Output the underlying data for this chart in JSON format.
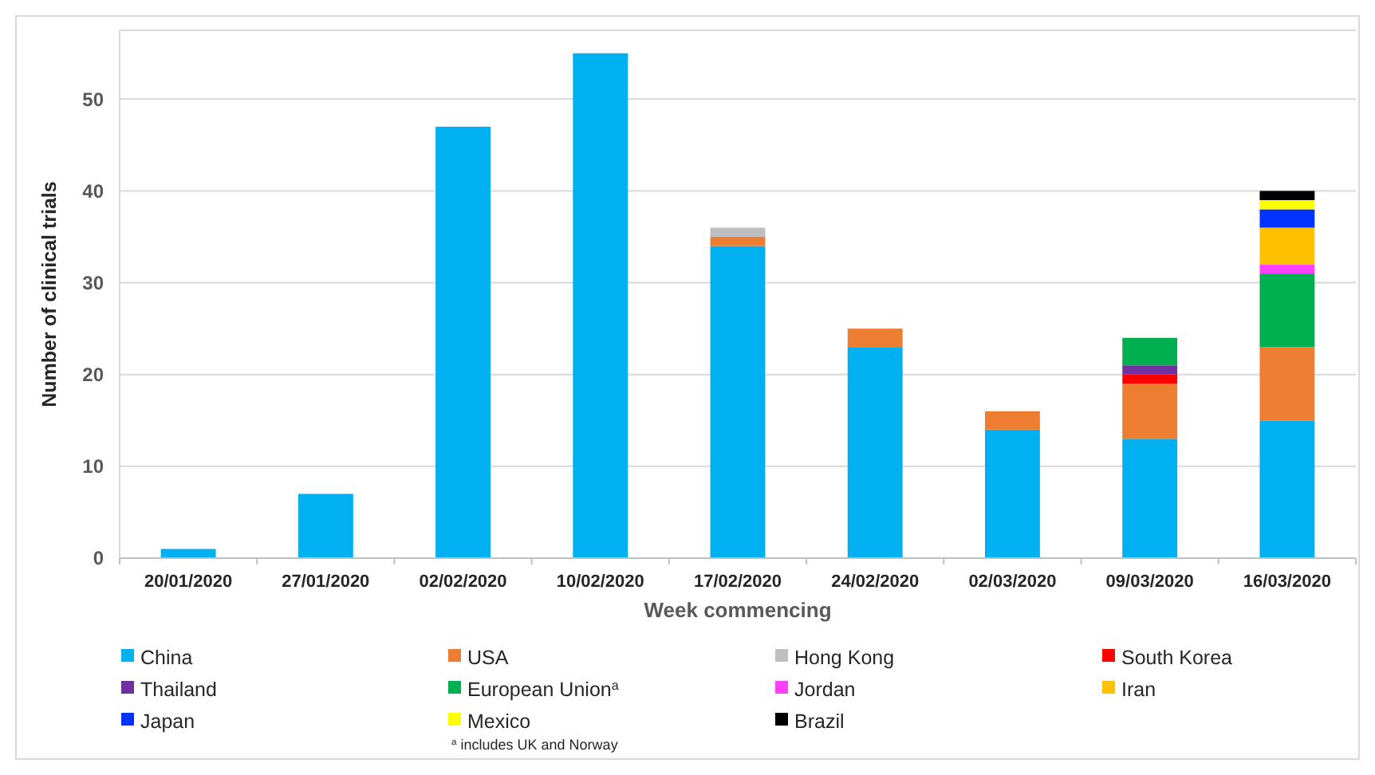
{
  "chart_data": {
    "type": "bar",
    "stacked": true,
    "xlabel": "Week commencing",
    "ylabel": "Number of clinical trials",
    "categories": [
      "20/01/2020",
      "27/01/2020",
      "02/02/2020",
      "10/02/2020",
      "17/02/2020",
      "24/02/2020",
      "02/03/2020",
      "09/03/2020",
      "16/03/2020"
    ],
    "series": [
      {
        "name": "China",
        "color": "#00b0f0",
        "values": [
          1,
          7,
          47,
          55,
          34,
          23,
          14,
          13,
          15
        ]
      },
      {
        "name": "USA",
        "color": "#ed7d31",
        "values": [
          0,
          0,
          0,
          0,
          1,
          2,
          2,
          6,
          8
        ]
      },
      {
        "name": "Hong Kong",
        "color": "#bfbfbf",
        "values": [
          0,
          0,
          0,
          0,
          1,
          0,
          0,
          0,
          0
        ]
      },
      {
        "name": "South Korea",
        "color": "#ff0000",
        "values": [
          0,
          0,
          0,
          0,
          0,
          0,
          0,
          1,
          0
        ]
      },
      {
        "name": "Thailand",
        "color": "#7030a0",
        "values": [
          0,
          0,
          0,
          0,
          0,
          0,
          0,
          1,
          0
        ]
      },
      {
        "name": "European Union$^{a}$",
        "color": "#00b050",
        "values": [
          0,
          0,
          0,
          0,
          0,
          0,
          0,
          3,
          8
        ]
      },
      {
        "name": "Jordan",
        "color": "#ff40ff",
        "values": [
          0,
          0,
          0,
          0,
          0,
          0,
          0,
          0,
          1
        ]
      },
      {
        "name": "Iran",
        "color": "#ffc000",
        "values": [
          0,
          0,
          0,
          0,
          0,
          0,
          0,
          0,
          4
        ]
      },
      {
        "name": "Japan",
        "color": "#0033ff",
        "values": [
          0,
          0,
          0,
          0,
          0,
          0,
          0,
          0,
          2
        ]
      },
      {
        "name": "Mexico",
        "color": "#ffff00",
        "values": [
          0,
          0,
          0,
          0,
          0,
          0,
          0,
          0,
          1
        ]
      },
      {
        "name": "Brazil",
        "color": "#000000",
        "values": [
          0,
          0,
          0,
          0,
          0,
          0,
          0,
          0,
          1
        ]
      }
    ],
    "ylim": [
      0,
      57.5
    ],
    "yticks": [
      0,
      10,
      20,
      30,
      40,
      50
    ],
    "grid": "y",
    "legend": "bottom",
    "annotations": [
      "$^{a}$ includes UK and Norway"
    ]
  }
}
